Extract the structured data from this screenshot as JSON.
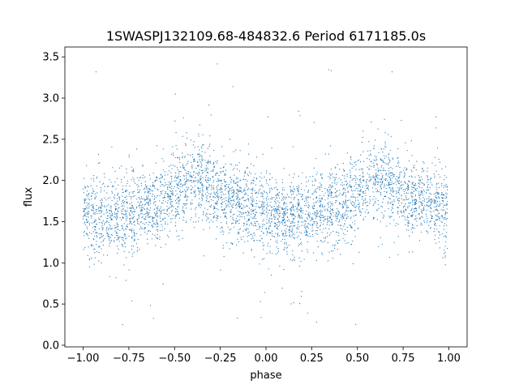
{
  "chart_data": {
    "type": "scatter",
    "title": "1SWASPJ132109.68-484832.6 Period 6171185.0s",
    "xlabel": "phase",
    "ylabel": "flux",
    "xlim": [
      -1.1,
      1.1
    ],
    "ylim": [
      -0.02,
      3.62
    ],
    "xticks": [
      -1.0,
      -0.75,
      -0.5,
      -0.25,
      0.0,
      0.25,
      0.5,
      0.75,
      1.0
    ],
    "xtick_labels": [
      "−1.00",
      "−0.75",
      "−0.50",
      "−0.25",
      "0.00",
      "0.25",
      "0.50",
      "0.75",
      "1.00"
    ],
    "yticks": [
      0.0,
      0.5,
      1.0,
      1.5,
      2.0,
      2.5,
      3.0,
      3.5
    ],
    "ytick_labels": [
      "0.0",
      "0.5",
      "1.0",
      "1.5",
      "2.0",
      "2.5",
      "3.0",
      "3.5"
    ],
    "grid": false,
    "marker_color": "#1f77b4",
    "series": [
      {
        "phase_x": [
          -1.0,
          -0.9,
          -0.8,
          -0.7,
          -0.6,
          -0.5,
          -0.45,
          -0.4,
          -0.35,
          -0.3,
          -0.25,
          -0.2,
          -0.1,
          0.0,
          0.1,
          0.2,
          0.3,
          0.4,
          0.5,
          0.55,
          0.6,
          0.65,
          0.7,
          0.8,
          0.9,
          1.0
        ],
        "median_flux": [
          1.6,
          1.55,
          1.6,
          1.65,
          1.7,
          1.85,
          1.95,
          2.0,
          2.0,
          1.9,
          1.8,
          1.75,
          1.7,
          1.6,
          1.55,
          1.6,
          1.65,
          1.7,
          1.85,
          1.95,
          2.0,
          2.0,
          1.9,
          1.8,
          1.75,
          1.6
        ],
        "flux_min": 0.15,
        "flux_max": 3.45
      }
    ]
  }
}
